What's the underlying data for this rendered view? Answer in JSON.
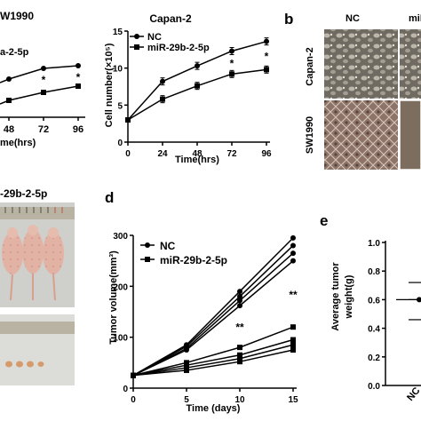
{
  "panel_letters": {
    "b": "b",
    "d": "d",
    "e": "e"
  },
  "panel_a_left": {
    "title_fragment": "W1990",
    "legend_fragment": "a-2-5p",
    "x_tick_labels": [
      "48",
      "72",
      "96"
    ],
    "xlabel_fragment": "me(hrs)",
    "stars": [
      "*",
      "*"
    ]
  },
  "panel_c_top": {
    "title_fragment": "-29b-2-5p"
  },
  "panel_b": {
    "col_labels": [
      "NC",
      "miR"
    ],
    "row_labels": [
      "Capan-2",
      "SW1990"
    ]
  },
  "panel_e": {
    "ylabel": "Average tumor weight(g)",
    "ylabel_line1": "Average tumor",
    "ylabel_line2": "weight(g)",
    "y_ticks": [
      "1.0",
      "0.8",
      "0.6",
      "0.4",
      "0.2",
      "0.0"
    ],
    "x_tick_fragment": "NC"
  },
  "chart_data": [
    {
      "type": "line",
      "title": "Capan-2",
      "xlabel": "Time(hrs)",
      "ylabel": "Cell number(×10⁵)",
      "x": [
        0,
        24,
        48,
        72,
        96
      ],
      "x_ticks": [
        "0",
        "24",
        "48",
        "72",
        "96"
      ],
      "y_ticks": [
        "0",
        "5",
        "10",
        "15"
      ],
      "xlim": [
        0,
        96
      ],
      "ylim": [
        0,
        15
      ],
      "legend_position": "top-left",
      "series": [
        {
          "name": "NC",
          "marker": "circle",
          "values": [
            3.0,
            8.2,
            10.3,
            12.3,
            13.6
          ]
        },
        {
          "name": "miR-29b-2-5p",
          "marker": "square",
          "values": [
            3.0,
            5.8,
            7.6,
            9.2,
            9.8
          ]
        }
      ],
      "annotations": [
        {
          "x": 72,
          "text": "*"
        },
        {
          "x": 96,
          "text": "*"
        }
      ]
    },
    {
      "type": "line",
      "xlabel": "Time (days)",
      "ylabel": "Tumor volume(mm³)",
      "x": [
        0,
        5,
        10,
        15
      ],
      "x_ticks": [
        "0",
        "5",
        "10",
        "15"
      ],
      "y_ticks": [
        "0",
        "100",
        "200",
        "300"
      ],
      "xlim": [
        0,
        15
      ],
      "ylim": [
        0,
        300
      ],
      "legend_position": "top-left",
      "legend": [
        {
          "name": "NC",
          "marker": "circle"
        },
        {
          "name": "miR-29b-2-5p",
          "marker": "square"
        }
      ],
      "series": [
        {
          "group": "NC",
          "marker": "circle",
          "values": [
            25,
            85,
            190,
            295
          ]
        },
        {
          "group": "NC",
          "marker": "circle",
          "values": [
            25,
            82,
            180,
            280
          ]
        },
        {
          "group": "NC",
          "marker": "circle",
          "values": [
            25,
            78,
            172,
            265
          ]
        },
        {
          "group": "NC",
          "marker": "circle",
          "values": [
            25,
            75,
            162,
            250
          ]
        },
        {
          "group": "miR-29b-2-5p",
          "marker": "square",
          "values": [
            25,
            50,
            80,
            120
          ]
        },
        {
          "group": "miR-29b-2-5p",
          "marker": "square",
          "values": [
            25,
            45,
            65,
            95
          ]
        },
        {
          "group": "miR-29b-2-5p",
          "marker": "square",
          "values": [
            25,
            40,
            58,
            85
          ]
        },
        {
          "group": "miR-29b-2-5p",
          "marker": "square",
          "values": [
            25,
            35,
            52,
            75
          ]
        }
      ],
      "annotations": [
        {
          "x": 10,
          "text": "**"
        },
        {
          "x": 15,
          "text": "**"
        }
      ]
    },
    {
      "type": "scatter",
      "ylabel": "Average tumor weight(g)",
      "ylim": [
        0,
        1.0
      ],
      "categories": [
        "NC"
      ],
      "points": [
        0.72,
        0.6,
        0.46
      ],
      "mean": 0.6
    }
  ]
}
